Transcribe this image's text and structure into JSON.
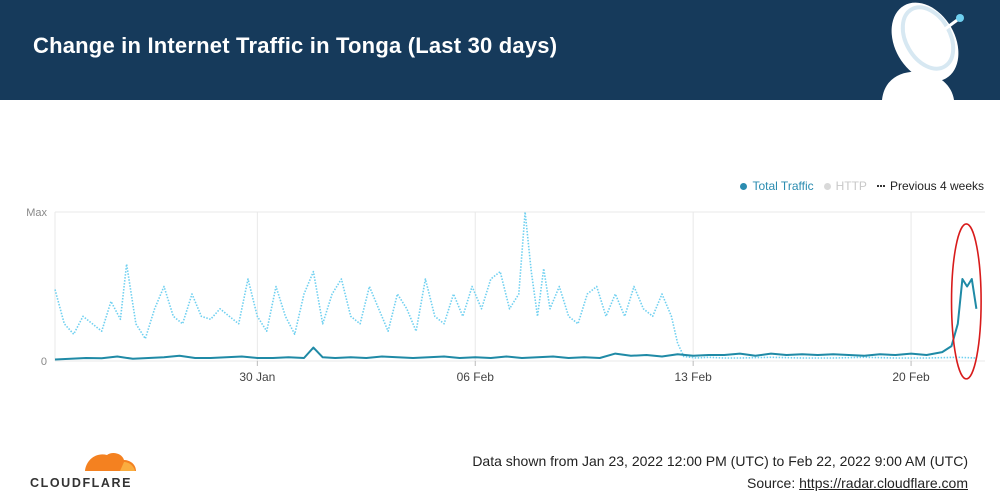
{
  "header": {
    "title": "Change in Internet Traffic in Tonga (Last 30 days)"
  },
  "legend": [
    {
      "label": "Total Traffic",
      "color": "#2b8cb0"
    },
    {
      "label": "HTTP",
      "color": "#d9d9d9"
    },
    {
      "label": "Previous 4 weeks",
      "color": "#222222"
    }
  ],
  "colors": {
    "total": "#1f8aa6",
    "previous": "#6fd0f0",
    "grid": "#e8e8e8",
    "annotation": "#d81b1b",
    "header_bg": "#163a5b",
    "logo": "#f48120"
  },
  "chart_data": {
    "type": "line",
    "x_range": [
      "2022-01-23T12:00",
      "2022-02-22T09:00"
    ],
    "y_ticks": [
      "Max",
      "0"
    ],
    "x_ticks": [
      "30 Jan",
      "06 Feb",
      "13 Feb",
      "20 Feb"
    ],
    "ylim": [
      0,
      1
    ],
    "legend_position": "top-right",
    "grid": true,
    "series": [
      {
        "name": "Total Traffic",
        "points": [
          [
            0.0,
            0.01
          ],
          [
            0.5,
            0.015
          ],
          [
            1.0,
            0.02
          ],
          [
            1.5,
            0.018
          ],
          [
            2.0,
            0.03
          ],
          [
            2.5,
            0.015
          ],
          [
            3.0,
            0.02
          ],
          [
            3.5,
            0.025
          ],
          [
            4.0,
            0.035
          ],
          [
            4.5,
            0.02
          ],
          [
            5.0,
            0.02
          ],
          [
            5.5,
            0.025
          ],
          [
            6.0,
            0.03
          ],
          [
            6.5,
            0.02
          ],
          [
            7.0,
            0.02
          ],
          [
            7.5,
            0.025
          ],
          [
            8.0,
            0.02
          ],
          [
            8.3,
            0.09
          ],
          [
            8.6,
            0.025
          ],
          [
            9.0,
            0.02
          ],
          [
            9.5,
            0.025
          ],
          [
            10.0,
            0.02
          ],
          [
            10.5,
            0.03
          ],
          [
            11.0,
            0.025
          ],
          [
            11.5,
            0.02
          ],
          [
            12.0,
            0.025
          ],
          [
            12.5,
            0.03
          ],
          [
            13.0,
            0.02
          ],
          [
            13.5,
            0.025
          ],
          [
            14.0,
            0.02
          ],
          [
            14.5,
            0.03
          ],
          [
            15.0,
            0.02
          ],
          [
            15.5,
            0.025
          ],
          [
            16.0,
            0.03
          ],
          [
            16.5,
            0.02
          ],
          [
            17.0,
            0.025
          ],
          [
            17.5,
            0.02
          ],
          [
            18.0,
            0.05
          ],
          [
            18.5,
            0.035
          ],
          [
            19.0,
            0.04
          ],
          [
            19.5,
            0.03
          ],
          [
            20.0,
            0.045
          ],
          [
            20.5,
            0.035
          ],
          [
            21.0,
            0.04
          ],
          [
            21.5,
            0.04
          ],
          [
            22.0,
            0.05
          ],
          [
            22.5,
            0.035
          ],
          [
            23.0,
            0.05
          ],
          [
            23.5,
            0.04
          ],
          [
            24.0,
            0.045
          ],
          [
            24.5,
            0.04
          ],
          [
            25.0,
            0.045
          ],
          [
            25.5,
            0.04
          ],
          [
            26.0,
            0.035
          ],
          [
            26.5,
            0.045
          ],
          [
            27.0,
            0.04
          ],
          [
            27.5,
            0.05
          ],
          [
            28.0,
            0.04
          ],
          [
            28.5,
            0.06
          ],
          [
            28.8,
            0.1
          ],
          [
            29.0,
            0.25
          ],
          [
            29.15,
            0.55
          ],
          [
            29.3,
            0.5
          ],
          [
            29.45,
            0.55
          ],
          [
            29.6,
            0.35
          ]
        ]
      },
      {
        "name": "Previous 4 weeks",
        "points": [
          [
            0.0,
            0.48
          ],
          [
            0.3,
            0.25
          ],
          [
            0.6,
            0.18
          ],
          [
            0.9,
            0.3
          ],
          [
            1.2,
            0.25
          ],
          [
            1.5,
            0.2
          ],
          [
            1.8,
            0.4
          ],
          [
            2.1,
            0.28
          ],
          [
            2.3,
            0.65
          ],
          [
            2.6,
            0.25
          ],
          [
            2.9,
            0.15
          ],
          [
            3.2,
            0.35
          ],
          [
            3.5,
            0.5
          ],
          [
            3.8,
            0.3
          ],
          [
            4.1,
            0.25
          ],
          [
            4.4,
            0.45
          ],
          [
            4.7,
            0.3
          ],
          [
            5.0,
            0.28
          ],
          [
            5.3,
            0.35
          ],
          [
            5.6,
            0.3
          ],
          [
            5.9,
            0.25
          ],
          [
            6.2,
            0.55
          ],
          [
            6.5,
            0.3
          ],
          [
            6.8,
            0.2
          ],
          [
            7.1,
            0.5
          ],
          [
            7.4,
            0.3
          ],
          [
            7.7,
            0.18
          ],
          [
            8.0,
            0.45
          ],
          [
            8.3,
            0.6
          ],
          [
            8.6,
            0.25
          ],
          [
            8.9,
            0.45
          ],
          [
            9.2,
            0.55
          ],
          [
            9.5,
            0.3
          ],
          [
            9.8,
            0.25
          ],
          [
            10.1,
            0.5
          ],
          [
            10.4,
            0.35
          ],
          [
            10.7,
            0.2
          ],
          [
            11.0,
            0.45
          ],
          [
            11.3,
            0.35
          ],
          [
            11.6,
            0.2
          ],
          [
            11.9,
            0.55
          ],
          [
            12.2,
            0.3
          ],
          [
            12.5,
            0.25
          ],
          [
            12.8,
            0.45
          ],
          [
            13.1,
            0.3
          ],
          [
            13.4,
            0.5
          ],
          [
            13.7,
            0.35
          ],
          [
            14.0,
            0.55
          ],
          [
            14.3,
            0.6
          ],
          [
            14.6,
            0.35
          ],
          [
            14.9,
            0.45
          ],
          [
            15.1,
            1.0
          ],
          [
            15.3,
            0.6
          ],
          [
            15.5,
            0.3
          ],
          [
            15.7,
            0.62
          ],
          [
            15.9,
            0.35
          ],
          [
            16.2,
            0.5
          ],
          [
            16.5,
            0.3
          ],
          [
            16.8,
            0.25
          ],
          [
            17.1,
            0.45
          ],
          [
            17.4,
            0.5
          ],
          [
            17.7,
            0.3
          ],
          [
            18.0,
            0.45
          ],
          [
            18.3,
            0.3
          ],
          [
            18.6,
            0.5
          ],
          [
            18.9,
            0.35
          ],
          [
            19.2,
            0.3
          ],
          [
            19.5,
            0.45
          ],
          [
            19.8,
            0.3
          ],
          [
            20.0,
            0.12
          ],
          [
            20.2,
            0.03
          ],
          [
            20.6,
            0.02
          ],
          [
            21.0,
            0.025
          ],
          [
            21.5,
            0.02
          ],
          [
            22.0,
            0.02
          ],
          [
            23.0,
            0.025
          ],
          [
            24.0,
            0.02
          ],
          [
            25.0,
            0.02
          ],
          [
            26.0,
            0.025
          ],
          [
            27.0,
            0.02
          ],
          [
            28.0,
            0.02
          ],
          [
            29.0,
            0.025
          ],
          [
            29.6,
            0.02
          ]
        ]
      }
    ],
    "annotation": {
      "type": "ellipse",
      "x_range": [
        28.8,
        29.75
      ],
      "y_range": [
        -0.12,
        0.92
      ]
    }
  },
  "footer": {
    "logo_text": "CLOUDFLARE",
    "range": "Data shown from Jan 23, 2022 12:00 PM (UTC) to Feb 22, 2022 9:00 AM (UTC)",
    "source_label": "Source: ",
    "source_link": "https://radar.cloudflare.com"
  }
}
